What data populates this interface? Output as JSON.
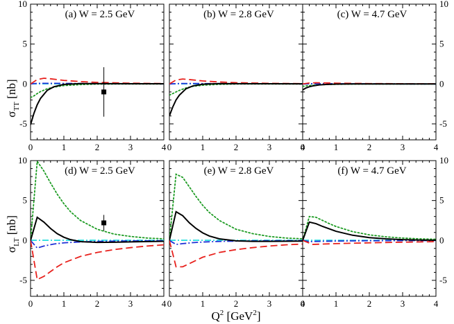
{
  "figure": {
    "ylabel_top": {
      "main": "σ",
      "sub": "TT",
      "unit": " [nb]"
    },
    "ylabel_bottom": {
      "main": "σ",
      "sub": "LT",
      "unit": " [nb]"
    },
    "xlabel": {
      "main": "Q",
      "sup1": "2",
      "mid": " [GeV",
      "sup2": "2",
      "end": "]"
    }
  },
  "colors": {
    "black": "#000000",
    "red": "#e8201c",
    "blue": "#1e2fd6",
    "cyan": "#2fe0e0",
    "green": "#1c9b22"
  },
  "chart_data": [
    {
      "type": "line",
      "title": "(a) W = 2.5 GeV",
      "quantity": "sigma_TT",
      "xlabel": "Q^2 [GeV^2]",
      "ylabel": "σ_TT [nb]",
      "xlim": [
        0,
        4
      ],
      "ylim": [
        -7,
        10
      ],
      "xticks": [
        "0",
        "1",
        "2",
        "3",
        "4"
      ],
      "yticks": [
        "-5",
        "0",
        "5",
        "10"
      ],
      "series": [
        {
          "name": "solid",
          "color": "black",
          "dash": "solid",
          "x": [
            0,
            0.1,
            0.2,
            0.3,
            0.5,
            0.7,
            1.0,
            1.5,
            2.0,
            3.0,
            4.0
          ],
          "y": [
            -5.1,
            -3.7,
            -2.6,
            -1.8,
            -0.8,
            -0.35,
            -0.05,
            0.05,
            0.05,
            0.03,
            0.02
          ]
        },
        {
          "name": "dashed",
          "color": "red",
          "dash": "dashed",
          "x": [
            0,
            0.2,
            0.4,
            0.6,
            1.0,
            1.5,
            2.0,
            3.0,
            4.0
          ],
          "y": [
            0,
            0.55,
            0.72,
            0.65,
            0.45,
            0.3,
            0.2,
            0.1,
            0.05
          ]
        },
        {
          "name": "dash-dot",
          "color": "blue",
          "dash": "dashdot",
          "x": [
            0,
            0.1,
            0.3,
            0.6,
            1.0,
            2.0,
            3.0,
            4.0
          ],
          "y": [
            0,
            0.05,
            0.08,
            0.08,
            0.07,
            0.04,
            0.02,
            0.01
          ]
        },
        {
          "name": "cyan",
          "color": "cyan",
          "dash": "dashdot",
          "x": [
            0,
            0.5,
            1.0,
            2.0,
            3.0,
            4.0
          ],
          "y": [
            0.02,
            0.02,
            0.02,
            0.02,
            0.02,
            0.02
          ]
        },
        {
          "name": "dotted",
          "color": "green",
          "dash": "dotted",
          "x": [
            0,
            0.1,
            0.2,
            0.3,
            0.5,
            0.7,
            1.0,
            1.5,
            2.0,
            3.0,
            4.0
          ],
          "y": [
            -1.7,
            -1.5,
            -1.2,
            -0.95,
            -0.6,
            -0.4,
            -0.2,
            -0.08,
            -0.02,
            0.0,
            0.0
          ]
        }
      ],
      "points": [
        {
          "x": 2.2,
          "y": -1.0,
          "err": 3.1
        }
      ]
    },
    {
      "type": "line",
      "title": "(b) W = 2.8 GeV",
      "quantity": "sigma_TT",
      "xlim": [
        0,
        4
      ],
      "ylim": [
        -7,
        10
      ],
      "xticks": [
        "0",
        "1",
        "2",
        "3",
        "4"
      ],
      "yticks": [],
      "series": [
        {
          "name": "solid",
          "color": "black",
          "dash": "solid",
          "x": [
            0,
            0.1,
            0.2,
            0.3,
            0.5,
            0.7,
            1.0,
            1.5,
            2.0,
            3.0,
            4.0
          ],
          "y": [
            -4.0,
            -2.9,
            -2.0,
            -1.4,
            -0.6,
            -0.25,
            -0.03,
            0.05,
            0.04,
            0.02,
            0.01
          ]
        },
        {
          "name": "dashed",
          "color": "red",
          "dash": "dashed",
          "x": [
            0,
            0.2,
            0.4,
            0.6,
            1.0,
            1.5,
            2.0,
            3.0,
            4.0
          ],
          "y": [
            0,
            0.5,
            0.62,
            0.55,
            0.38,
            0.25,
            0.16,
            0.08,
            0.04
          ]
        },
        {
          "name": "dash-dot",
          "color": "blue",
          "dash": "dashdot",
          "x": [
            0,
            0.3,
            0.6,
            1.0,
            2.0,
            3.0,
            4.0
          ],
          "y": [
            0,
            0.06,
            0.06,
            0.05,
            0.03,
            0.02,
            0.01
          ]
        },
        {
          "name": "cyan",
          "color": "cyan",
          "dash": "dashdot",
          "x": [
            0,
            1.0,
            2.0,
            3.0,
            4.0
          ],
          "y": [
            0.02,
            0.02,
            0.02,
            0.02,
            0.02
          ]
        },
        {
          "name": "dotted",
          "color": "green",
          "dash": "dotted",
          "x": [
            0,
            0.1,
            0.2,
            0.3,
            0.5,
            0.7,
            1.0,
            1.5,
            2.0,
            3.0,
            4.0
          ],
          "y": [
            -1.4,
            -1.2,
            -1.0,
            -0.8,
            -0.5,
            -0.3,
            -0.15,
            -0.05,
            -0.01,
            0.0,
            0.0
          ]
        }
      ],
      "points": []
    },
    {
      "type": "line",
      "title": "(c) W = 4.7 GeV",
      "quantity": "sigma_TT",
      "xlim": [
        0,
        4
      ],
      "ylim": [
        -7,
        10
      ],
      "xticks": [
        "0",
        "1",
        "2",
        "3",
        "4"
      ],
      "yticks": [
        "-5",
        "0",
        "5",
        "10"
      ],
      "series": [
        {
          "name": "solid",
          "color": "black",
          "dash": "solid",
          "x": [
            0,
            0.1,
            0.2,
            0.3,
            0.5,
            0.7,
            1.0,
            1.5,
            2.0,
            3.0,
            4.0
          ],
          "y": [
            -0.75,
            -0.5,
            -0.35,
            -0.25,
            -0.12,
            -0.06,
            -0.02,
            0.0,
            0.0,
            0.0,
            0.0
          ]
        },
        {
          "name": "dashed",
          "color": "red",
          "dash": "dashed",
          "x": [
            0,
            0.2,
            0.4,
            0.7,
            1.0,
            2.0,
            3.0,
            4.0
          ],
          "y": [
            0,
            0.12,
            0.15,
            0.13,
            0.1,
            0.05,
            0.03,
            0.02
          ]
        },
        {
          "name": "dash-dot",
          "color": "blue",
          "dash": "dashdot",
          "x": [
            0,
            0.3,
            1.0,
            2.0,
            3.0,
            4.0
          ],
          "y": [
            0,
            0.03,
            0.03,
            0.02,
            0.01,
            0.0
          ]
        },
        {
          "name": "cyan",
          "color": "cyan",
          "dash": "dashdot",
          "x": [
            0,
            1.0,
            2.0,
            3.0,
            4.0
          ],
          "y": [
            0.01,
            0.01,
            0.01,
            0.01,
            0.01
          ]
        },
        {
          "name": "dotted",
          "color": "green",
          "dash": "dotted",
          "x": [
            0,
            0.2,
            0.5,
            1.0,
            2.0,
            3.0,
            4.0
          ],
          "y": [
            -0.3,
            -0.2,
            -0.1,
            -0.04,
            0.0,
            0.0,
            0.0
          ]
        }
      ],
      "points": []
    },
    {
      "type": "line",
      "title": "(d) W = 2.5 GeV",
      "quantity": "sigma_LT",
      "xlabel": "Q^2 [GeV^2]",
      "ylabel": "σ_LT [nb]",
      "xlim": [
        0,
        4
      ],
      "ylim": [
        -7,
        10
      ],
      "xticks": [
        "0",
        "1",
        "2",
        "3",
        "4"
      ],
      "yticks": [
        "-5",
        "0",
        "5",
        "10"
      ],
      "series": [
        {
          "name": "solid",
          "color": "black",
          "dash": "solid",
          "x": [
            0,
            0.2,
            0.4,
            0.6,
            0.8,
            1.0,
            1.2,
            1.5,
            2.0,
            2.5,
            3.0,
            4.0
          ],
          "y": [
            0,
            2.9,
            2.3,
            1.5,
            0.85,
            0.4,
            0.1,
            -0.15,
            -0.25,
            -0.22,
            -0.18,
            -0.1
          ]
        },
        {
          "name": "dashed",
          "color": "red",
          "dash": "dashed",
          "x": [
            0,
            0.2,
            0.4,
            0.6,
            0.8,
            1.0,
            1.5,
            2.0,
            2.5,
            3.0,
            3.5,
            4.0
          ],
          "y": [
            0,
            -4.9,
            -4.5,
            -3.9,
            -3.3,
            -2.8,
            -2.0,
            -1.5,
            -1.15,
            -0.9,
            -0.7,
            -0.55
          ]
        },
        {
          "name": "dash-dot",
          "color": "blue",
          "dash": "dashdot",
          "x": [
            0,
            0.2,
            0.4,
            0.7,
            1.0,
            1.5,
            2.0,
            3.0,
            4.0
          ],
          "y": [
            0,
            -0.95,
            -0.7,
            -0.45,
            -0.3,
            -0.18,
            -0.12,
            -0.06,
            -0.03
          ]
        },
        {
          "name": "cyan",
          "color": "cyan",
          "dash": "dashdot",
          "x": [
            0,
            1.0,
            2.0,
            3.0,
            4.0
          ],
          "y": [
            0.02,
            0.02,
            0.02,
            0.02,
            0.02
          ]
        },
        {
          "name": "dotted",
          "color": "green",
          "dash": "dotted",
          "x": [
            0,
            0.2,
            0.4,
            0.6,
            0.8,
            1.0,
            1.2,
            1.5,
            2.0,
            2.5,
            3.0,
            3.5,
            4.0
          ],
          "y": [
            0,
            9.9,
            8.7,
            7.2,
            5.8,
            4.6,
            3.6,
            2.5,
            1.4,
            0.8,
            0.5,
            0.3,
            0.2
          ]
        }
      ],
      "points": [
        {
          "x": 2.2,
          "y": 2.2,
          "err": 1.0
        }
      ]
    },
    {
      "type": "line",
      "title": "(e) W = 2.8 GeV",
      "quantity": "sigma_LT",
      "xlim": [
        0,
        4
      ],
      "ylim": [
        -7,
        10
      ],
      "xticks": [
        "0",
        "1",
        "2",
        "3",
        "4"
      ],
      "yticks": [],
      "series": [
        {
          "name": "solid",
          "color": "black",
          "dash": "solid",
          "x": [
            0,
            0.2,
            0.4,
            0.6,
            0.8,
            1.0,
            1.2,
            1.5,
            2.0,
            2.5,
            3.0,
            4.0
          ],
          "y": [
            0,
            3.6,
            3.1,
            2.2,
            1.5,
            0.95,
            0.55,
            0.2,
            -0.05,
            -0.12,
            -0.12,
            -0.08
          ]
        },
        {
          "name": "dashed",
          "color": "red",
          "dash": "dashed",
          "x": [
            0,
            0.2,
            0.4,
            0.6,
            0.8,
            1.0,
            1.5,
            2.0,
            2.5,
            3.0,
            3.5,
            4.0
          ],
          "y": [
            0,
            -3.3,
            -3.3,
            -2.9,
            -2.5,
            -2.1,
            -1.5,
            -1.15,
            -0.9,
            -0.7,
            -0.55,
            -0.45
          ]
        },
        {
          "name": "dash-dot",
          "color": "blue",
          "dash": "dashdot",
          "x": [
            0,
            0.2,
            0.4,
            0.7,
            1.0,
            1.5,
            2.0,
            3.0,
            4.0
          ],
          "y": [
            0,
            -0.5,
            -0.4,
            -0.28,
            -0.2,
            -0.12,
            -0.08,
            -0.04,
            -0.02
          ]
        },
        {
          "name": "cyan",
          "color": "cyan",
          "dash": "dashdot",
          "x": [
            0,
            1.0,
            2.0,
            3.0,
            4.0
          ],
          "y": [
            0.02,
            0.02,
            0.02,
            0.02,
            0.02
          ]
        },
        {
          "name": "dotted",
          "color": "green",
          "dash": "dotted",
          "x": [
            0,
            0.2,
            0.4,
            0.6,
            0.8,
            1.0,
            1.2,
            1.5,
            2.0,
            2.5,
            3.0,
            3.5,
            4.0
          ],
          "y": [
            0,
            8.3,
            7.9,
            6.7,
            5.5,
            4.4,
            3.5,
            2.5,
            1.4,
            0.85,
            0.5,
            0.3,
            0.2
          ]
        }
      ],
      "points": []
    },
    {
      "type": "line",
      "title": "(f) W = 4.7 GeV",
      "quantity": "sigma_LT",
      "xlim": [
        0,
        4
      ],
      "ylim": [
        -7,
        10
      ],
      "xticks": [
        "0",
        "1",
        "2",
        "3",
        "4"
      ],
      "yticks": [
        "-5",
        "0",
        "5",
        "10"
      ],
      "series": [
        {
          "name": "solid",
          "color": "black",
          "dash": "solid",
          "x": [
            0,
            0.2,
            0.4,
            0.6,
            0.8,
            1.0,
            1.5,
            2.0,
            2.5,
            3.0,
            3.5,
            4.0
          ],
          "y": [
            0,
            2.3,
            2.1,
            1.75,
            1.45,
            1.15,
            0.65,
            0.35,
            0.2,
            0.1,
            0.05,
            0.02
          ]
        },
        {
          "name": "dashed",
          "color": "red",
          "dash": "dashed",
          "x": [
            0,
            0.3,
            0.6,
            1.0,
            1.5,
            2.0,
            3.0,
            4.0
          ],
          "y": [
            0,
            -0.5,
            -0.45,
            -0.4,
            -0.35,
            -0.3,
            -0.22,
            -0.15
          ]
        },
        {
          "name": "dash-dot",
          "color": "blue",
          "dash": "dashdot",
          "x": [
            0,
            0.2,
            0.4,
            0.7,
            1.0,
            2.0,
            3.0,
            4.0
          ],
          "y": [
            0,
            -0.15,
            -0.12,
            -0.1,
            -0.08,
            -0.04,
            -0.02,
            -0.01
          ]
        },
        {
          "name": "cyan",
          "color": "cyan",
          "dash": "dashdot",
          "x": [
            0,
            1.0,
            2.0,
            3.0,
            4.0
          ],
          "y": [
            0.02,
            0.02,
            0.02,
            0.02,
            0.02
          ]
        },
        {
          "name": "dotted",
          "color": "green",
          "dash": "dotted",
          "x": [
            0,
            0.2,
            0.4,
            0.6,
            0.8,
            1.0,
            1.5,
            2.0,
            2.5,
            3.0,
            3.5,
            4.0
          ],
          "y": [
            0,
            3.0,
            2.9,
            2.5,
            2.1,
            1.75,
            1.1,
            0.7,
            0.45,
            0.3,
            0.2,
            0.15
          ]
        }
      ],
      "points": []
    }
  ]
}
